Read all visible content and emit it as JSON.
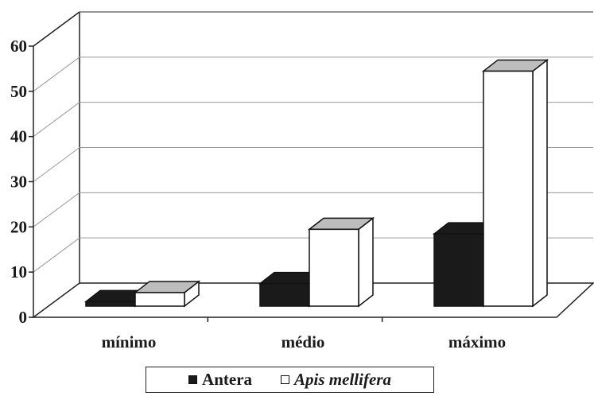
{
  "chart_data": {
    "type": "bar",
    "title": "",
    "xlabel": "",
    "ylabel": "",
    "categories": [
      "mínimo",
      "médio",
      "máximo"
    ],
    "ylim": [
      0,
      60
    ],
    "yticks": [
      "0",
      "10",
      "20",
      "30",
      "40",
      "50",
      "60"
    ],
    "grid": true,
    "legend_position": "bottom",
    "series": [
      {
        "name": "Antera",
        "values": [
          1,
          5,
          16
        ],
        "color": "#1a1a1a"
      },
      {
        "name": "Apis mellifera",
        "values": [
          3,
          17,
          52
        ],
        "color": "#ffffff"
      }
    ]
  },
  "legend": {
    "items": [
      {
        "label": "Antera",
        "italic": false,
        "swatch": "#1a1a1a"
      },
      {
        "label": "Apis mellifera",
        "italic": true,
        "swatch": "#ffffff"
      }
    ]
  }
}
